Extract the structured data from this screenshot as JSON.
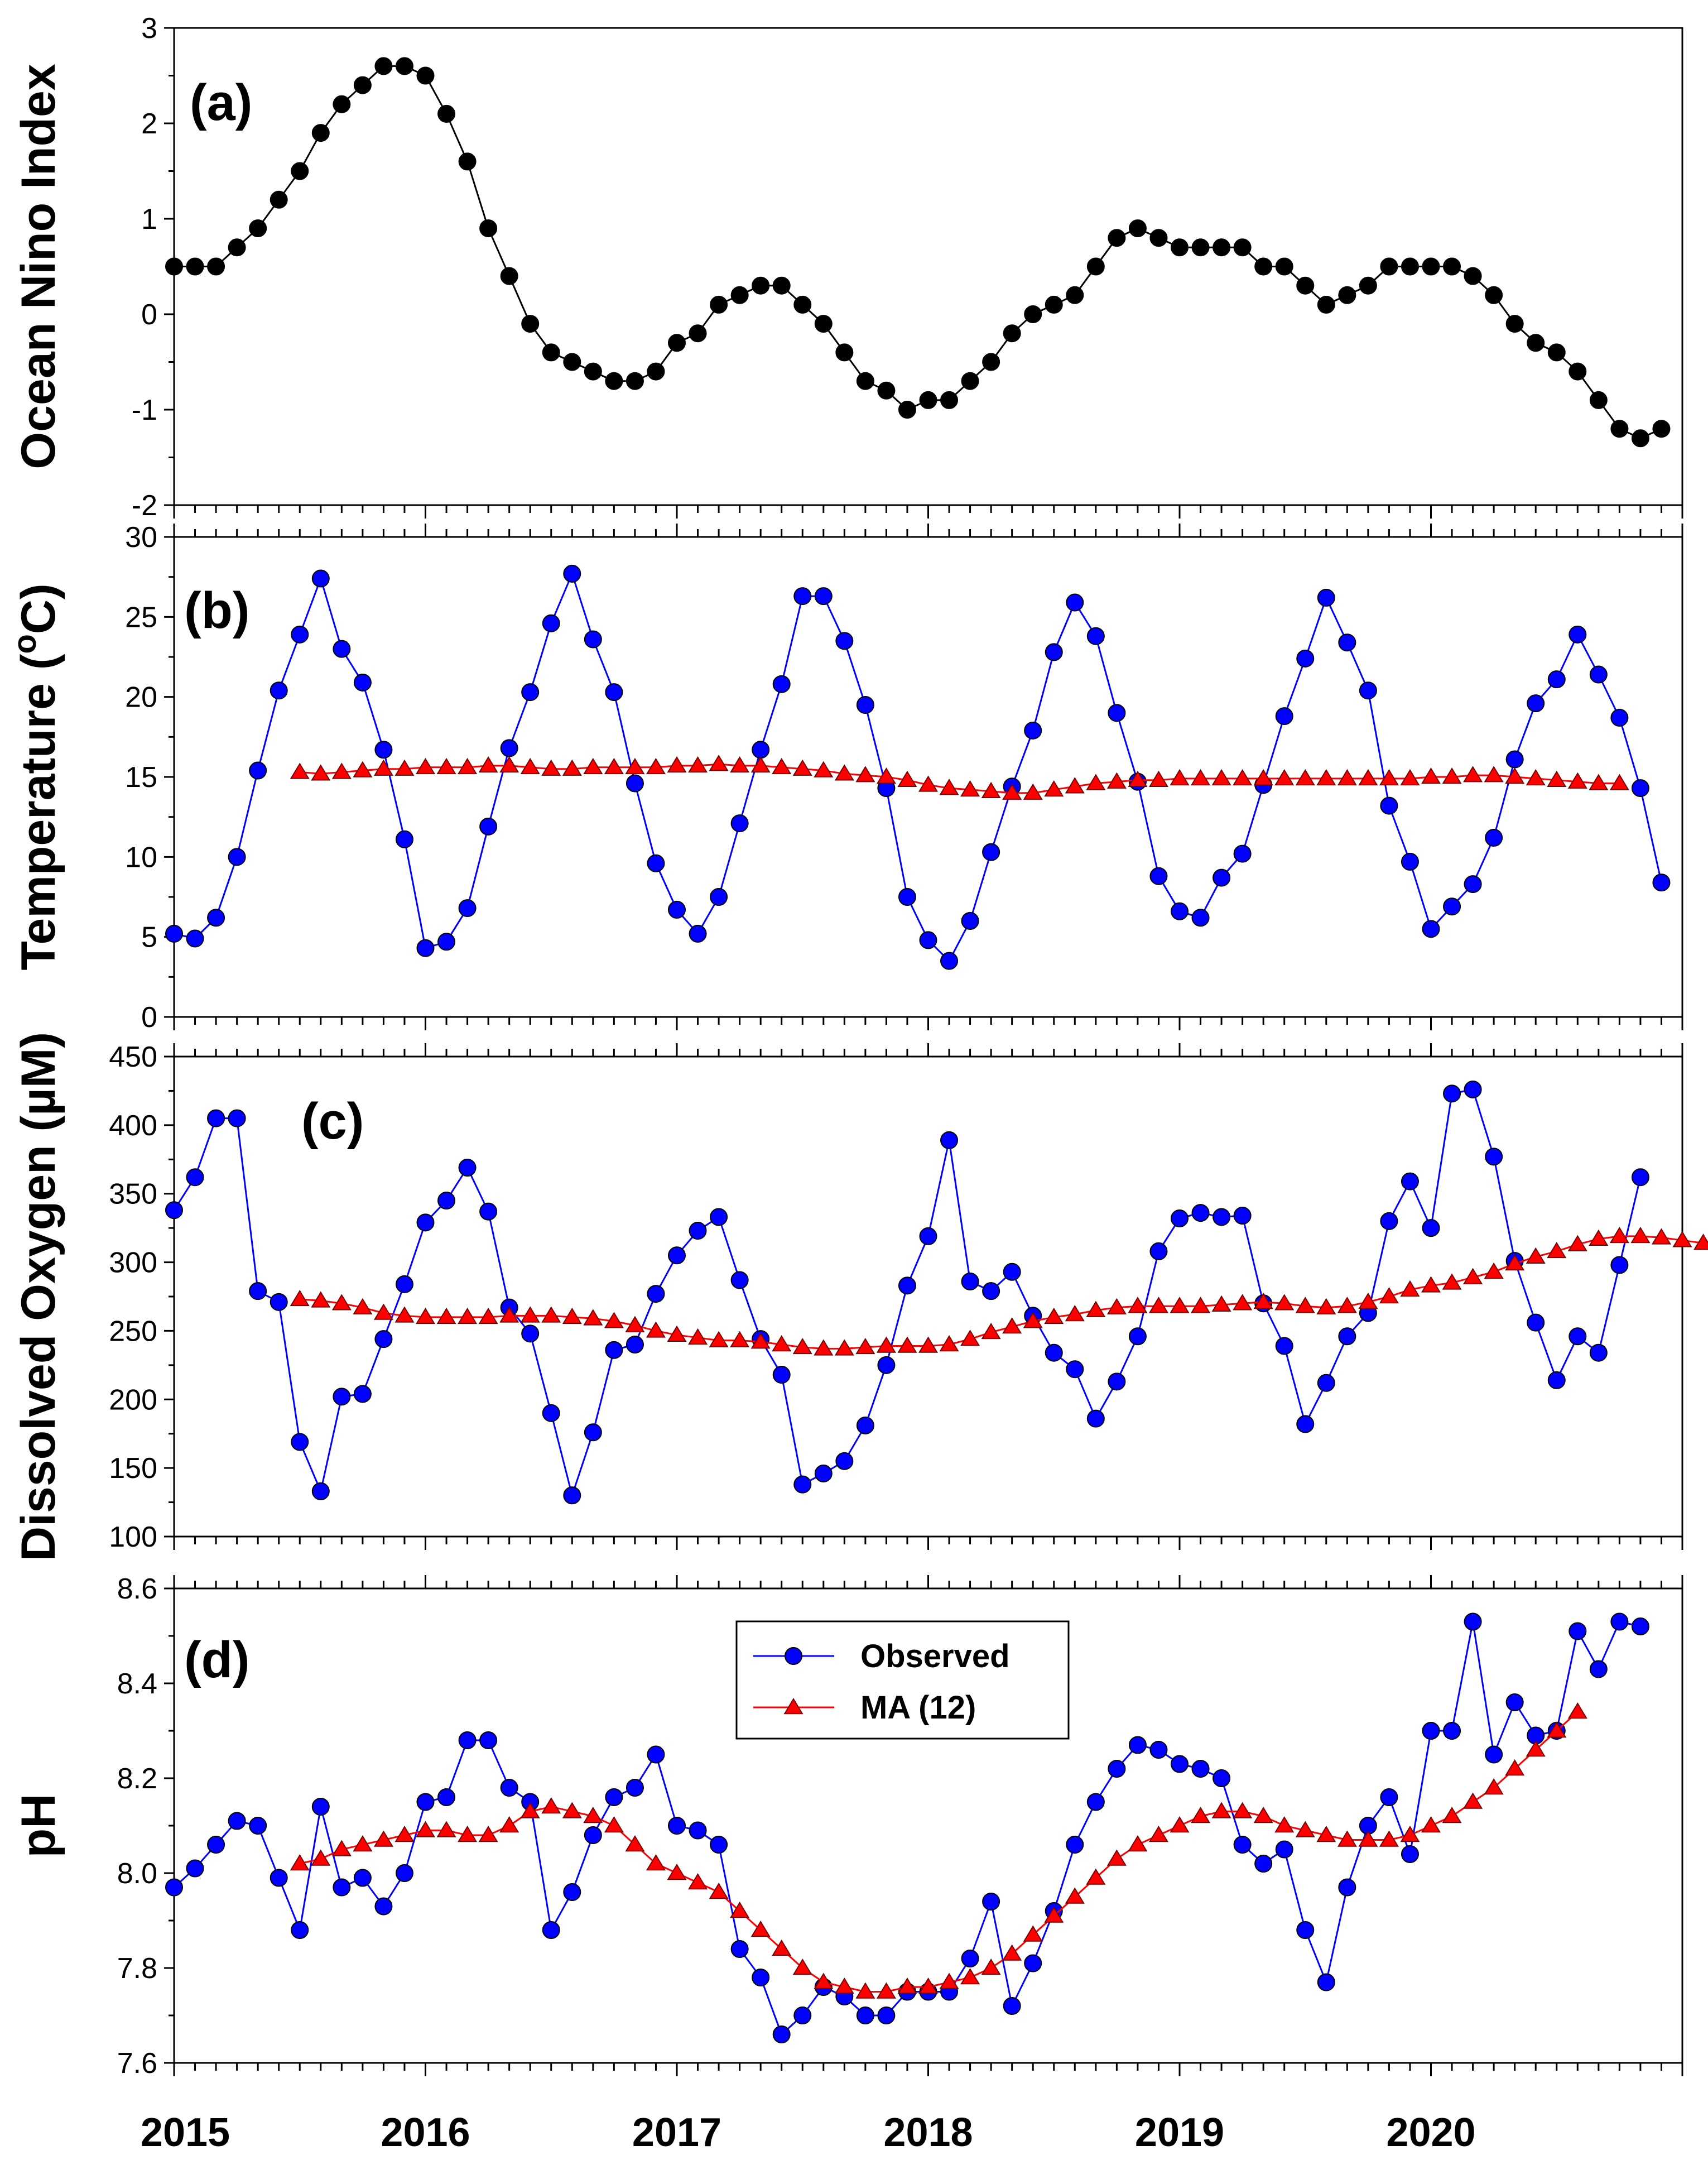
{
  "chart_data": [
    {
      "type": "line",
      "panel_label": "(a)",
      "ylabel": "Ocean Nino Index",
      "ylim": [
        -2,
        3
      ],
      "yticks": [
        3,
        2,
        1,
        0,
        -1,
        -2
      ],
      "marker": "circle",
      "series": [
        {
          "name": "Ocean Nino Index",
          "color": "#000000",
          "start_month": 0,
          "values": [
            0.5,
            0.5,
            0.5,
            0.7,
            0.9,
            1.2,
            1.5,
            1.9,
            2.2,
            2.4,
            2.6,
            2.6,
            2.5,
            2.1,
            1.6,
            0.9,
            0.4,
            -0.1,
            -0.4,
            -0.5,
            -0.6,
            -0.7,
            -0.7,
            -0.6,
            -0.3,
            -0.2,
            0.1,
            0.2,
            0.3,
            0.3,
            0.1,
            -0.1,
            -0.4,
            -0.7,
            -0.8,
            -1.0,
            -0.9,
            -0.9,
            -0.7,
            -0.5,
            -0.2,
            0.0,
            0.1,
            0.2,
            0.5,
            0.8,
            0.9,
            0.8,
            0.7,
            0.7,
            0.7,
            0.7,
            0.5,
            0.5,
            0.3,
            0.1,
            0.2,
            0.3,
            0.5,
            0.5,
            0.5,
            0.5,
            0.4,
            0.2,
            -0.1,
            -0.3,
            -0.4,
            -0.6,
            -0.9,
            -1.2,
            -1.3,
            -1.2
          ]
        }
      ]
    },
    {
      "type": "line",
      "panel_label": "(b)",
      "ylabel": "Temperature (°C)",
      "ylabel_main": "Temperature (",
      "ylabel_sup": "o",
      "ylabel_end": "C)",
      "ylim": [
        0,
        30
      ],
      "yticks": [
        30,
        25,
        20,
        15,
        10,
        5,
        0
      ],
      "series": [
        {
          "name": "Observed",
          "color": "#0000FF",
          "marker": "circle",
          "start_month": 0,
          "values": [
            5.2,
            4.9,
            6.2,
            10.0,
            15.4,
            20.4,
            23.9,
            27.4,
            23.0,
            20.9,
            16.7,
            11.1,
            4.3,
            4.7,
            6.8,
            11.9,
            16.8,
            20.3,
            24.6,
            27.7,
            23.6,
            20.3,
            14.6,
            9.6,
            6.7,
            5.2,
            7.5,
            12.1,
            16.7,
            20.8,
            26.3,
            26.3,
            23.5,
            19.5,
            14.3,
            7.5,
            4.8,
            3.5,
            6.0,
            10.3,
            14.4,
            17.9,
            22.8,
            25.9,
            23.8,
            19.0,
            14.7,
            8.8,
            6.6,
            6.2,
            8.7,
            10.2,
            14.5,
            18.8,
            22.4,
            26.2,
            23.4,
            20.4,
            13.2,
            9.7,
            5.5,
            6.9,
            8.3,
            11.2,
            16.1,
            19.6,
            21.1,
            23.9,
            21.4,
            18.7,
            14.3,
            8.4
          ]
        },
        {
          "name": "MA (12)",
          "color": "#FF0000",
          "marker": "triangle",
          "start_month": 6,
          "values": [
            15.3,
            15.2,
            15.3,
            15.4,
            15.5,
            15.5,
            15.6,
            15.6,
            15.6,
            15.7,
            15.7,
            15.6,
            15.5,
            15.5,
            15.6,
            15.6,
            15.6,
            15.6,
            15.7,
            15.7,
            15.8,
            15.7,
            15.7,
            15.6,
            15.5,
            15.4,
            15.2,
            15.1,
            15.0,
            14.8,
            14.5,
            14.3,
            14.2,
            14.1,
            14.0,
            14.0,
            14.2,
            14.4,
            14.6,
            14.7,
            14.8,
            14.8,
            14.9,
            14.9,
            14.9,
            14.9,
            14.9,
            14.9,
            14.9,
            14.9,
            14.9,
            14.9,
            14.9,
            14.9,
            15.0,
            15.0,
            15.1,
            15.1,
            15.0,
            14.9,
            14.8,
            14.7,
            14.6,
            14.6
          ]
        }
      ]
    },
    {
      "type": "line",
      "panel_label": "(c)",
      "ylabel": "Dissolved Oxygen (µM)",
      "ylim": [
        100,
        450
      ],
      "yticks": [
        450,
        400,
        350,
        300,
        250,
        200,
        150,
        100
      ],
      "series": [
        {
          "name": "Observed",
          "color": "#0000FF",
          "marker": "circle",
          "start_month": 0,
          "values": [
            338,
            362,
            405,
            405,
            279,
            271,
            169,
            133,
            202,
            204,
            244,
            284,
            329,
            345,
            369,
            337,
            267,
            248,
            190,
            130,
            176,
            236,
            240,
            277,
            305,
            323,
            333,
            287,
            244,
            218,
            138,
            146,
            155,
            181,
            225,
            283,
            319,
            389,
            286,
            279,
            293,
            261,
            234,
            222,
            186,
            213,
            246,
            308,
            332,
            336,
            333,
            334,
            270,
            239,
            182,
            212,
            246,
            263,
            330,
            359,
            325,
            423,
            426,
            377,
            301,
            256,
            214,
            246,
            234,
            298,
            362
          ]
        },
        {
          "name": "MA (12)",
          "color": "#FF0000",
          "marker": "triangle",
          "start_month": 6,
          "values": [
            273,
            272,
            270,
            267,
            263,
            261,
            260,
            260,
            260,
            260,
            261,
            261,
            261,
            260,
            259,
            257,
            254,
            250,
            247,
            245,
            243,
            243,
            242,
            240,
            238,
            237,
            237,
            238,
            239,
            239,
            239,
            240,
            244,
            249,
            253,
            257,
            260,
            262,
            265,
            267,
            268,
            268,
            268,
            268,
            269,
            270,
            271,
            270,
            268,
            267,
            268,
            271,
            275,
            280,
            283,
            285,
            289,
            293,
            299,
            304,
            308,
            313,
            317,
            319,
            319,
            318,
            316,
            314
          ]
        }
      ]
    },
    {
      "type": "line",
      "panel_label": "(d)",
      "ylabel": "pH",
      "ylim": [
        7.6,
        8.6
      ],
      "yticks": [
        "8.6",
        "8.4",
        "8.2",
        "8.0",
        "7.8",
        "7.6"
      ],
      "series": [
        {
          "name": "Observed",
          "color": "#0000FF",
          "marker": "circle",
          "start_month": 0,
          "values": [
            7.97,
            8.01,
            8.06,
            8.11,
            8.1,
            7.99,
            7.88,
            8.14,
            7.97,
            7.99,
            7.93,
            8.0,
            8.15,
            8.16,
            8.28,
            8.28,
            8.18,
            8.15,
            7.88,
            7.96,
            8.08,
            8.16,
            8.18,
            8.25,
            8.1,
            8.09,
            8.06,
            7.84,
            7.78,
            7.66,
            7.7,
            7.76,
            7.74,
            7.7,
            7.7,
            7.75,
            7.75,
            7.75,
            7.82,
            7.94,
            7.72,
            7.81,
            7.92,
            8.06,
            8.15,
            8.22,
            8.27,
            8.26,
            8.23,
            8.22,
            8.2,
            8.06,
            8.02,
            8.05,
            7.88,
            7.77,
            7.97,
            8.1,
            8.16,
            8.04,
            8.3,
            8.3,
            8.53,
            8.25,
            8.36,
            8.29,
            8.3,
            8.51,
            8.43,
            8.53,
            8.52
          ]
        },
        {
          "name": "MA (12)",
          "color": "#FF0000",
          "marker": "triangle",
          "start_month": 6,
          "values": [
            8.02,
            8.03,
            8.05,
            8.06,
            8.07,
            8.08,
            8.09,
            8.09,
            8.08,
            8.08,
            8.1,
            8.13,
            8.14,
            8.13,
            8.12,
            8.1,
            8.06,
            8.02,
            8.0,
            7.98,
            7.96,
            7.92,
            7.88,
            7.84,
            7.8,
            7.77,
            7.76,
            7.75,
            7.75,
            7.76,
            7.76,
            7.77,
            7.78,
            7.8,
            7.83,
            7.87,
            7.91,
            7.95,
            7.99,
            8.03,
            8.06,
            8.08,
            8.1,
            8.12,
            8.13,
            8.13,
            8.12,
            8.1,
            8.09,
            8.08,
            8.07,
            8.07,
            8.07,
            8.08,
            8.1,
            8.12,
            8.15,
            8.18,
            8.22,
            8.26,
            8.3,
            8.34
          ]
        }
      ]
    }
  ],
  "x_axis": {
    "months": 72,
    "year_labels": [
      "2015",
      "2016",
      "2017",
      "2018",
      "2019",
      "2020"
    ]
  },
  "legend": {
    "placement": "top-center",
    "panel": "(d)",
    "entries": [
      {
        "label": "Observed",
        "color": "#0000FF",
        "marker": "circle"
      },
      {
        "label": "MA (12)",
        "color": "#FF0000",
        "marker": "triangle"
      }
    ]
  }
}
